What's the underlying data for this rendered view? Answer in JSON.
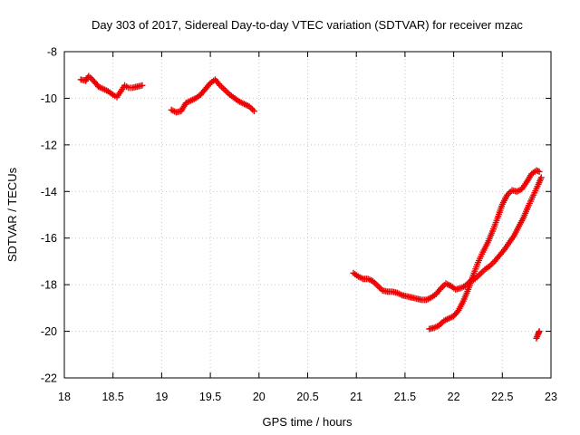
{
  "chart_data": {
    "type": "scatter",
    "title": "Day 303 of 2017, Sidereal Day-to-day VTEC variation (SDTVAR) for receiver mzac",
    "xlabel": "GPS time / hours",
    "ylabel": "SDTVAR / TECUs",
    "xlim": [
      18,
      23
    ],
    "ylim": [
      -22,
      -8
    ],
    "x_ticks": [
      18,
      18.5,
      19,
      19.5,
      20,
      20.5,
      21,
      21.5,
      22,
      22.5,
      23
    ],
    "x_tick_labels": [
      "18",
      "18.5",
      "19",
      "19.5",
      "20",
      "20.5",
      "21",
      "21.5",
      "22",
      "22.5",
      "23"
    ],
    "y_ticks": [
      -22,
      -20,
      -18,
      -16,
      -14,
      -12,
      -10,
      -8
    ],
    "y_tick_labels": [
      "-22",
      "-20",
      "-18",
      "-16",
      "-14",
      "-12",
      "-10",
      "-8"
    ],
    "grid": true,
    "marker": "plus",
    "marker_color": "#ee0000",
    "series": [
      {
        "name": "segment-1",
        "points": [
          [
            18.17,
            -9.2
          ],
          [
            18.22,
            -9.25
          ],
          [
            18.25,
            -9.05
          ],
          [
            18.3,
            -9.25
          ],
          [
            18.35,
            -9.5
          ],
          [
            18.4,
            -9.6
          ],
          [
            18.45,
            -9.7
          ],
          [
            18.5,
            -9.85
          ],
          [
            18.54,
            -9.95
          ],
          [
            18.58,
            -9.7
          ],
          [
            18.62,
            -9.45
          ],
          [
            18.66,
            -9.55
          ],
          [
            18.7,
            -9.55
          ],
          [
            18.75,
            -9.5
          ],
          [
            18.8,
            -9.45
          ]
        ]
      },
      {
        "name": "segment-2",
        "points": [
          [
            19.1,
            -10.5
          ],
          [
            19.15,
            -10.6
          ],
          [
            19.2,
            -10.55
          ],
          [
            19.25,
            -10.2
          ],
          [
            19.3,
            -10.1
          ],
          [
            19.35,
            -10.0
          ],
          [
            19.4,
            -9.85
          ],
          [
            19.45,
            -9.6
          ],
          [
            19.5,
            -9.35
          ],
          [
            19.55,
            -9.2
          ],
          [
            19.6,
            -9.45
          ],
          [
            19.65,
            -9.65
          ],
          [
            19.7,
            -9.85
          ],
          [
            19.75,
            -10.0
          ],
          [
            19.8,
            -10.15
          ],
          [
            19.85,
            -10.25
          ],
          [
            19.9,
            -10.35
          ],
          [
            19.95,
            -10.55
          ]
        ]
      },
      {
        "name": "segment-3",
        "points": [
          [
            20.97,
            -17.5
          ],
          [
            21.02,
            -17.65
          ],
          [
            21.07,
            -17.75
          ],
          [
            21.12,
            -17.75
          ],
          [
            21.17,
            -17.85
          ],
          [
            21.22,
            -18.05
          ],
          [
            21.27,
            -18.25
          ],
          [
            21.32,
            -18.3
          ],
          [
            21.37,
            -18.3
          ],
          [
            21.42,
            -18.35
          ],
          [
            21.47,
            -18.45
          ],
          [
            21.52,
            -18.5
          ],
          [
            21.57,
            -18.55
          ],
          [
            21.62,
            -18.6
          ],
          [
            21.67,
            -18.65
          ],
          [
            21.72,
            -18.65
          ],
          [
            21.77,
            -18.55
          ],
          [
            21.82,
            -18.4
          ],
          [
            21.87,
            -18.15
          ],
          [
            21.92,
            -17.95
          ],
          [
            21.97,
            -18.05
          ],
          [
            22.02,
            -18.2
          ],
          [
            22.07,
            -18.15
          ],
          [
            22.12,
            -18.05
          ],
          [
            22.17,
            -17.85
          ],
          [
            22.22,
            -17.75
          ],
          [
            22.27,
            -17.55
          ],
          [
            22.32,
            -17.35
          ],
          [
            22.37,
            -17.2
          ],
          [
            22.42,
            -17.0
          ],
          [
            22.47,
            -16.75
          ],
          [
            22.52,
            -16.5
          ],
          [
            22.57,
            -16.2
          ],
          [
            22.62,
            -15.9
          ],
          [
            22.67,
            -15.5
          ],
          [
            22.72,
            -15.1
          ],
          [
            22.77,
            -14.6
          ],
          [
            22.82,
            -14.15
          ],
          [
            22.87,
            -13.7
          ],
          [
            22.9,
            -13.4
          ]
        ]
      },
      {
        "name": "segment-4",
        "points": [
          [
            21.75,
            -19.9
          ],
          [
            21.8,
            -19.85
          ],
          [
            21.85,
            -19.75
          ],
          [
            21.9,
            -19.55
          ],
          [
            21.95,
            -19.45
          ],
          [
            22.0,
            -19.35
          ],
          [
            22.05,
            -19.1
          ],
          [
            22.1,
            -18.7
          ],
          [
            22.15,
            -18.2
          ],
          [
            22.2,
            -17.6
          ],
          [
            22.25,
            -17.05
          ],
          [
            22.3,
            -16.6
          ],
          [
            22.35,
            -16.2
          ],
          [
            22.4,
            -15.7
          ],
          [
            22.45,
            -15.15
          ],
          [
            22.5,
            -14.55
          ],
          [
            22.55,
            -14.15
          ],
          [
            22.6,
            -13.95
          ],
          [
            22.65,
            -14.0
          ],
          [
            22.7,
            -13.9
          ],
          [
            22.75,
            -13.6
          ],
          [
            22.8,
            -13.25
          ],
          [
            22.85,
            -13.1
          ],
          [
            22.88,
            -13.15
          ]
        ]
      },
      {
        "name": "segment-5",
        "points": [
          [
            22.85,
            -20.3
          ],
          [
            22.87,
            -20.1
          ],
          [
            22.88,
            -20.0
          ]
        ]
      }
    ]
  }
}
